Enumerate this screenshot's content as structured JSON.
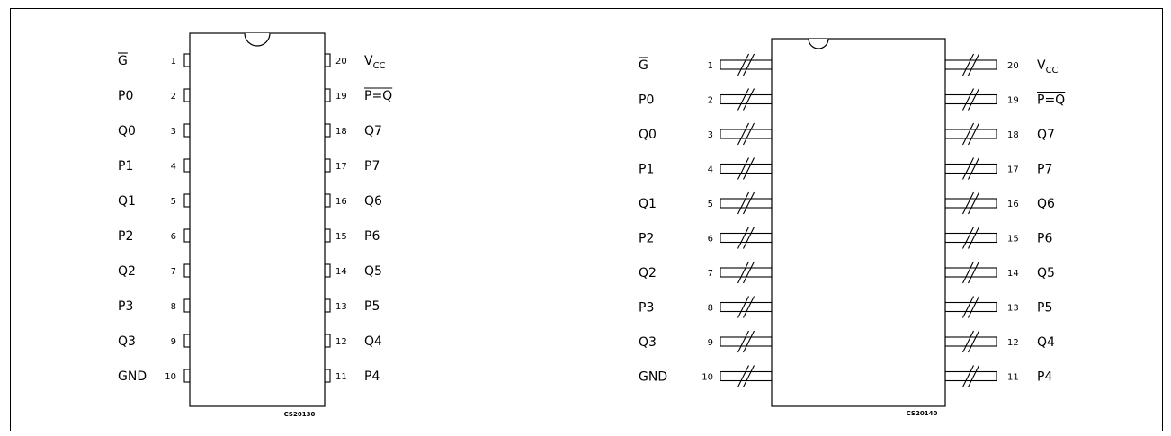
{
  "packages": [
    {
      "id": "dip",
      "code": "CS20130",
      "left_pins": [
        {
          "num": "1",
          "label": "G",
          "overline": true
        },
        {
          "num": "2",
          "label": "P0"
        },
        {
          "num": "3",
          "label": "Q0"
        },
        {
          "num": "4",
          "label": "P1"
        },
        {
          "num": "5",
          "label": "Q1"
        },
        {
          "num": "6",
          "label": "P2"
        },
        {
          "num": "7",
          "label": "Q2"
        },
        {
          "num": "8",
          "label": "P3"
        },
        {
          "num": "9",
          "label": "Q3"
        },
        {
          "num": "10",
          "label": "GND"
        }
      ],
      "right_pins": [
        {
          "num": "20",
          "label": "V",
          "sub": "CC"
        },
        {
          "num": "19",
          "label": "P=Q",
          "overline": true
        },
        {
          "num": "18",
          "label": "Q7"
        },
        {
          "num": "17",
          "label": "P7"
        },
        {
          "num": "16",
          "label": "Q6"
        },
        {
          "num": "15",
          "label": "P6"
        },
        {
          "num": "14",
          "label": "Q5"
        },
        {
          "num": "13",
          "label": "P5"
        },
        {
          "num": "12",
          "label": "Q4"
        },
        {
          "num": "11",
          "label": "P4"
        }
      ]
    },
    {
      "id": "so",
      "code": "CS20140",
      "left_pins": [
        {
          "num": "1",
          "label": "G",
          "overline": true
        },
        {
          "num": "2",
          "label": "P0"
        },
        {
          "num": "3",
          "label": "Q0"
        },
        {
          "num": "4",
          "label": "P1"
        },
        {
          "num": "5",
          "label": "Q1"
        },
        {
          "num": "6",
          "label": "P2"
        },
        {
          "num": "7",
          "label": "Q2"
        },
        {
          "num": "8",
          "label": "P3"
        },
        {
          "num": "9",
          "label": "Q3"
        },
        {
          "num": "10",
          "label": "GND"
        }
      ],
      "right_pins": [
        {
          "num": "20",
          "label": "V",
          "sub": "CC"
        },
        {
          "num": "19",
          "label": "P=Q",
          "overline": true
        },
        {
          "num": "18",
          "label": "Q7"
        },
        {
          "num": "17",
          "label": "P7"
        },
        {
          "num": "16",
          "label": "Q6"
        },
        {
          "num": "15",
          "label": "P6"
        },
        {
          "num": "14",
          "label": "Q5"
        },
        {
          "num": "13",
          "label": "P5"
        },
        {
          "num": "12",
          "label": "Q4"
        },
        {
          "num": "11",
          "label": "P4"
        }
      ]
    }
  ]
}
